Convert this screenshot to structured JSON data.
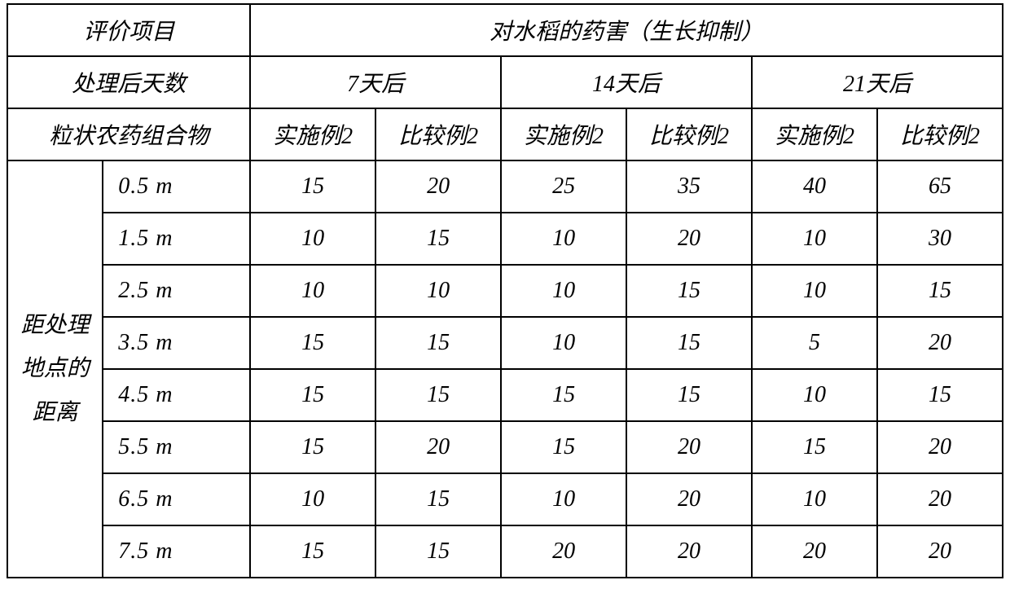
{
  "colors": {
    "border": "#000000",
    "bg": "#ffffff",
    "text": "#000000"
  },
  "typography": {
    "fontsize_pt": 21,
    "font_family": "SimSun serif italic"
  },
  "header": {
    "eval_item": "评价项目",
    "main_title": "对水稻的药害（生长抑制）",
    "days_after_label": "处理后天数",
    "days": [
      "7天后",
      "14天后",
      "21天后"
    ],
    "composition_label": "粒状农药组合物",
    "col_labels": {
      "ex2": "实施例2",
      "cmp2": "比较例2"
    }
  },
  "row_group_label": "距处理\n地点的\n距离",
  "distances": [
    "0.5 m",
    "1.5 m",
    "2.5 m",
    "3.5 m",
    "4.5 m",
    "5.5 m",
    "6.5 m",
    "7.5 m"
  ],
  "data": {
    "d7": {
      "ex2": [
        15,
        10,
        10,
        15,
        15,
        15,
        10,
        15
      ],
      "cmp2": [
        20,
        15,
        10,
        15,
        15,
        20,
        15,
        15
      ]
    },
    "d14": {
      "ex2": [
        25,
        10,
        10,
        10,
        15,
        15,
        10,
        20
      ],
      "cmp2": [
        35,
        20,
        15,
        15,
        15,
        20,
        20,
        20
      ]
    },
    "d21": {
      "ex2": [
        40,
        10,
        10,
        5,
        10,
        15,
        10,
        20
      ],
      "cmp2": [
        65,
        30,
        15,
        20,
        15,
        20,
        20,
        20
      ]
    }
  }
}
